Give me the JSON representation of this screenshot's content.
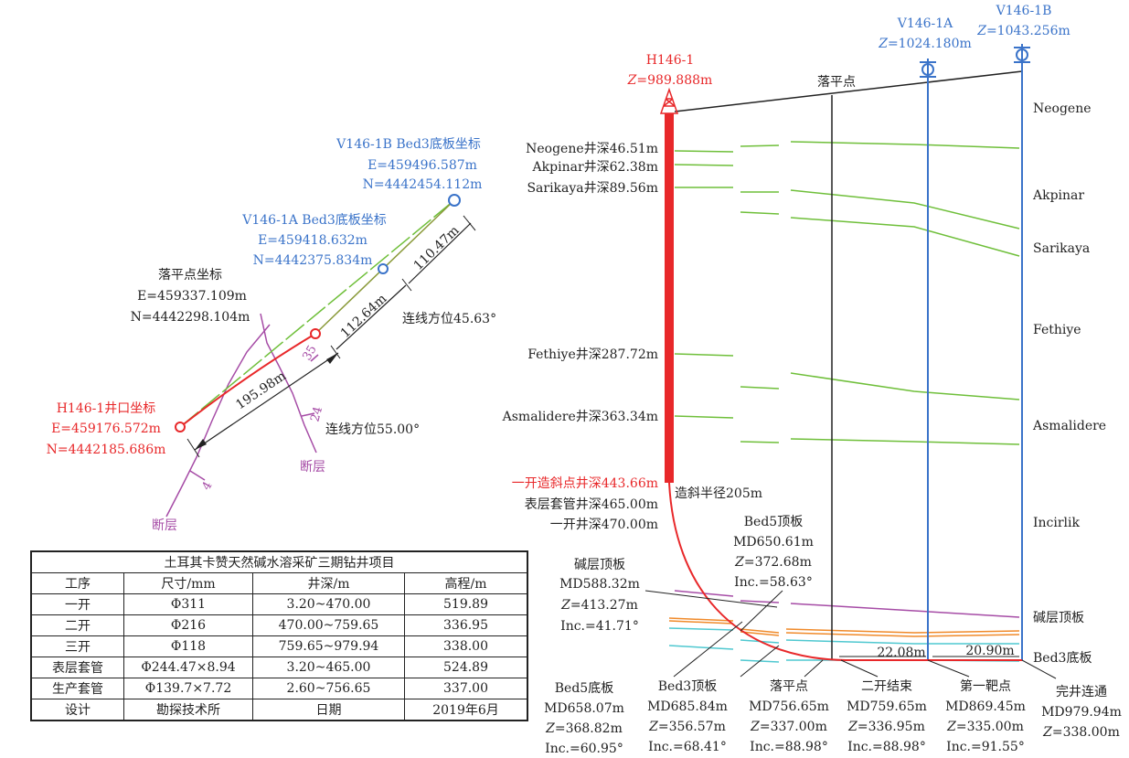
{
  "plan": {
    "v1b_coord": {
      "title": "V146-1B Bed3底板坐标",
      "e": "E=459496.587m",
      "n": "N=4442454.112m"
    },
    "v1a_coord": {
      "title": "V146-1A Bed3底板坐标",
      "e": "E=459418.632m",
      "n": "N=4442375.834m"
    },
    "landing_coord": {
      "title": "落平点坐标",
      "e": "E=459337.109m",
      "n": "N=4442298.104m"
    },
    "h1_coord": {
      "title": "H146-1井口坐标",
      "e": "E=459176.572m",
      "n": "N=4442185.686m"
    },
    "dist_1": "110.47m",
    "dist_2": "112.64m",
    "dist_3": "195.98m",
    "azimuth_1": "连线方位45.63°",
    "azimuth_2": "连线方位55.00°",
    "fault_1": "断层",
    "fault_2": "断层",
    "fault_ticks": [
      "35",
      "24",
      "4"
    ]
  },
  "section": {
    "h1": {
      "name": "H146-1",
      "z": "=989.888m"
    },
    "v1a": {
      "name": "V146-1A",
      "z": "=1024.180m"
    },
    "v1b": {
      "name": "V146-1B",
      "z": "=1043.256m"
    },
    "landing_label": "落平点",
    "formations": [
      "Neogene",
      "Akpinar",
      "Sarikaya",
      "Fethiye",
      "Asmalidere",
      "Incirlik",
      "碱层顶板",
      "Bed3底板"
    ],
    "depth_labels": [
      {
        "text": "Neogene井深46.51m",
        "color": "#222"
      },
      {
        "text": "Akpinar井深62.38m",
        "color": "#222"
      },
      {
        "text": "Sarikaya井深89.56m",
        "color": "#222"
      },
      {
        "text": "Fethiye井深287.72m",
        "color": "#222"
      },
      {
        "text": "Asmalidere井深363.34m",
        "color": "#222"
      },
      {
        "text": "一开造斜点井深443.66m",
        "color": "#e8282a"
      },
      {
        "text": "表层套管井深465.00m",
        "color": "#222"
      },
      {
        "text": "一开井深470.00m",
        "color": "#222"
      }
    ],
    "build_radius": "造斜半径205m",
    "spacing_1": "22.08m",
    "spacing_2": "20.90m",
    "callouts": [
      {
        "title": "碱层顶板",
        "md": "MD588.32m",
        "z": "=413.27m",
        "inc": "Inc.=41.71°"
      },
      {
        "title": "Bed5顶板",
        "md": "MD650.61m",
        "z": "=372.68m",
        "inc": "Inc.=58.63°"
      },
      {
        "title": "Bed5底板",
        "md": "MD658.07m",
        "z": "=368.82m",
        "inc": "Inc.=60.95°"
      },
      {
        "title": "Bed3顶板",
        "md": "MD685.84m",
        "z": "=356.57m",
        "inc": "Inc.=68.41°"
      },
      {
        "title": "落平点",
        "md": "MD756.65m",
        "z": "=337.00m",
        "inc": "Inc.=88.98°"
      },
      {
        "title": "二开结束",
        "md": "MD759.65m",
        "z": "=336.95m",
        "inc": "Inc.=88.98°"
      },
      {
        "title": "第一靶点",
        "md": "MD869.45m",
        "z": "=335.00m",
        "inc": "Inc.=91.55°"
      },
      {
        "title": "完井连通",
        "md": "MD979.94m",
        "z": "=338.00m",
        "inc": ""
      }
    ]
  },
  "table": {
    "title": "土耳其卡赞天然碱水溶采矿三期钻井项目",
    "headers": [
      "工序",
      "尺寸/mm",
      "井深/m",
      "高程/m"
    ],
    "rows": [
      [
        "一开",
        "Φ311",
        "3.20~470.00",
        "519.89"
      ],
      [
        "二开",
        "Φ216",
        "470.00~759.65",
        "336.95"
      ],
      [
        "三开",
        "Φ118",
        "759.65~979.94",
        "338.00"
      ],
      [
        "表层套管",
        "Φ244.47×8.94",
        "3.20~465.00",
        "524.89"
      ],
      [
        "生产套管",
        "Φ139.7×7.72",
        "2.60~756.65",
        "337.00"
      ],
      [
        "设计",
        "勘探技术所",
        "日期",
        "2019年6月"
      ]
    ]
  },
  "colors": {
    "red": "#e8282a",
    "blue": "#3a73c9",
    "green": "#6fbf3a",
    "purple": "#a64ca6",
    "orange": "#f08a2a",
    "cyan": "#4fc8d0"
  }
}
